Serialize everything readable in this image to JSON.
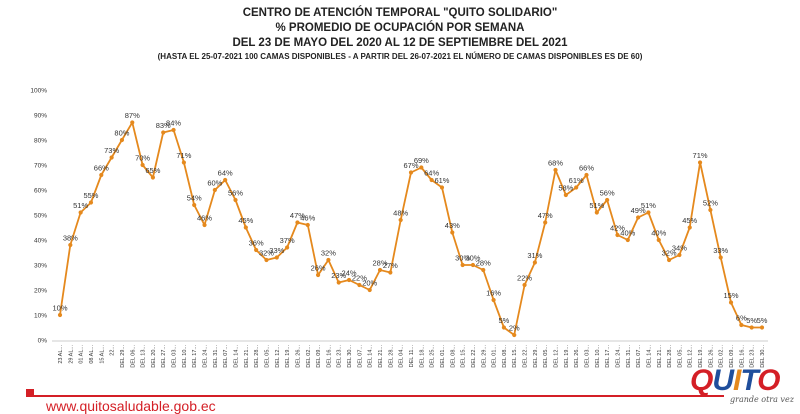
{
  "header": {
    "line1": "CENTRO DE ATENCIÓN TEMPORAL \"QUITO SOLIDARIO\"",
    "line2": "%  PROMEDIO DE OCUPACIÓN POR SEMANA",
    "line3": "DEL 23 DE MAYO DEL  2020  AL 12 DE SEPTIEMBRE DEL 2021",
    "note": "(HASTA EL 25-07-2021 100 CAMAS DISPONIBLES - A PARTIR DEL 26-07-2021 EL NÚMERO DE CAMAS DISPONIBLES ES DE 60)"
  },
  "chart_data": {
    "type": "line",
    "yticks": [
      "0%",
      "10%",
      "20%",
      "30%",
      "40%",
      "50%",
      "60%",
      "70%",
      "80%",
      "90%",
      "100%"
    ],
    "ylim": [
      0,
      100
    ],
    "grid": false,
    "series": [
      {
        "values": [
          10,
          38,
          51,
          55,
          66,
          73,
          80,
          87,
          70,
          65,
          83,
          84,
          71,
          54,
          46,
          60,
          64,
          56,
          45,
          36,
          32,
          33,
          37,
          47,
          46,
          26,
          32,
          23,
          24,
          22,
          20,
          28,
          27,
          48,
          67,
          69,
          64,
          61,
          43,
          30,
          30,
          28,
          16,
          5,
          2,
          22,
          31,
          47,
          68,
          58,
          61,
          66,
          51,
          56,
          42,
          40,
          49,
          51,
          40,
          32,
          34,
          45,
          71,
          52,
          33,
          15,
          6,
          5,
          5
        ],
        "labels": [
          "10%",
          "38%",
          "51%",
          "55%",
          "66%",
          "73%",
          "80%",
          "87%",
          "70%",
          "65%",
          "83%",
          "84%",
          "71%",
          "54%",
          "46%",
          "60%",
          "64%",
          "56%",
          "45%",
          "36%",
          "32%",
          "33%",
          "37%",
          "47%",
          "46%",
          "26%",
          "32%",
          "23%",
          "24%",
          "22%",
          "20%",
          "28%",
          "27%",
          "48%",
          "67%",
          "69%",
          "64%",
          "61%",
          "43%",
          "30%",
          "30%",
          "28%",
          "16%",
          "5%",
          "2%",
          "22%",
          "31%",
          "47%",
          "68%",
          "58%",
          "61%",
          "66%",
          "51%",
          "56%",
          "42%",
          "40%",
          "49%",
          "51%",
          "40%",
          "32%",
          "34%",
          "45%",
          "71%",
          "52%",
          "33%",
          "15%",
          "6%",
          "5%",
          "5%"
        ]
      }
    ],
    "categories": [
      "23 AL...",
      "29 AL...",
      "01 AL...",
      "08 AL...",
      "15 AL...",
      "22...",
      "DEL 29...",
      "DEL 06...",
      "DEL 13...",
      "DEL 20...",
      "DEL 27...",
      "DEL 03...",
      "DEL 10...",
      "DEL 17...",
      "DEL 24...",
      "DEL 31...",
      "DEL 07...",
      "DEL 14...",
      "DEL 21...",
      "DEL 28...",
      "DEL 05...",
      "DEL 12...",
      "DEL 19...",
      "DEL 26...",
      "DEL 02...",
      "DEL 09...",
      "DEL 16...",
      "DEL 23...",
      "DEL 30...",
      "DEL 07...",
      "DEL 14...",
      "DEL 21...",
      "DEL 28...",
      "DEL 04...",
      "DEL 11...",
      "DEL 18...",
      "DEL 25...",
      "DEL 01...",
      "DEL 08...",
      "DEL 15...",
      "DEL 22...",
      "DEL 29...",
      "DEL 01...",
      "DEL 08...",
      "DEL 15...",
      "DEL 22...",
      "DEL 29...",
      "DEL 05...",
      "DEL 12...",
      "DEL 19...",
      "DEL 26...",
      "DEL 03...",
      "DEL 10...",
      "DEL 17...",
      "DEL 24...",
      "DEL 31...",
      "DEL 07...",
      "DEL 14...",
      "DEL 21...",
      "DEL 28...",
      "DEL 05...",
      "DEL 12...",
      "DEL 19...",
      "DEL 26...",
      "DEL 02...",
      "DEL 09...",
      "DEL 16...",
      "DEL 23...",
      "DEL 30..."
    ],
    "line_color": "#e5891d",
    "marker_color": "#e5891d"
  },
  "footer": {
    "url": "www.quitosaludable.gob.ec",
    "url_color": "#d41f26",
    "rule_color": "#d41f26"
  },
  "logo": {
    "letters": [
      "Q",
      "U",
      "I",
      "T",
      "O"
    ],
    "letter_colors": [
      "#d41f26",
      "#1f4e9c",
      "#e5891d",
      "#1f4e9c",
      "#d41f26"
    ],
    "tagline": "grande otra vez"
  }
}
